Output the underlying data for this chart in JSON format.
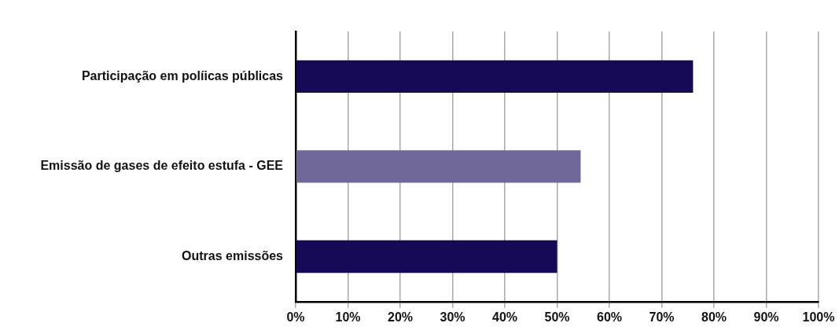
{
  "chart_data": {
    "type": "bar",
    "orientation": "horizontal",
    "categories": [
      "Participação em políicas públicas",
      "Emissão de gases de efeito estufa - GEE",
      "Outras emissões"
    ],
    "values": [
      76,
      54.5,
      50
    ],
    "colors": [
      "#160a56",
      "#6e6798",
      "#160a56"
    ],
    "xlim": [
      0,
      100
    ],
    "xticks": [
      {
        "value": 0,
        "label": "0%"
      },
      {
        "value": 10,
        "label": "10%"
      },
      {
        "value": 20,
        "label": "20%"
      },
      {
        "value": 30,
        "label": "30%"
      },
      {
        "value": 40,
        "label": "40%"
      },
      {
        "value": 50,
        "label": "50%"
      },
      {
        "value": 60,
        "label": "60%"
      },
      {
        "value": 70,
        "label": "70%"
      },
      {
        "value": 80,
        "label": "80%"
      },
      {
        "value": 90,
        "label": "90%"
      },
      {
        "value": 100,
        "label": "100%"
      }
    ],
    "grid": "x",
    "legend": false
  }
}
